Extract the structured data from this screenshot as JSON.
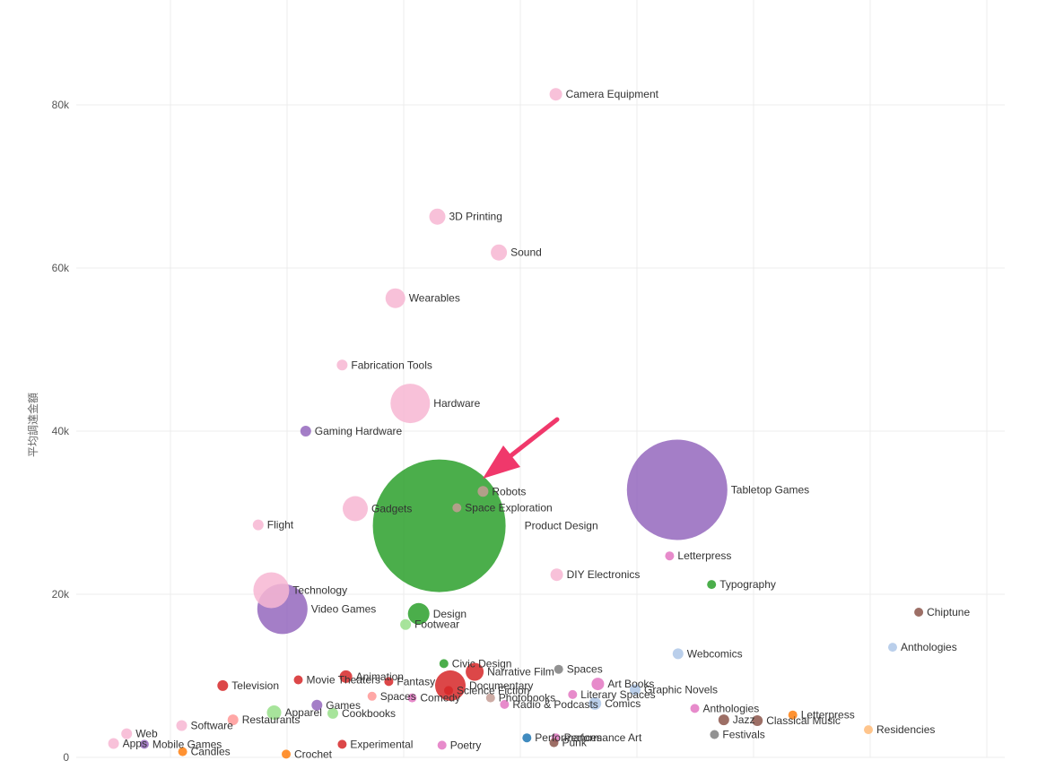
{
  "chart_data": {
    "type": "scatter",
    "ylabel": "平均調達金額",
    "ylim": [
      0,
      90000
    ],
    "y_ticks": [
      {
        "value": 0,
        "label": "0"
      },
      {
        "value": 20000,
        "label": "20k"
      },
      {
        "value": 40000,
        "label": "40k"
      },
      {
        "value": 60000,
        "label": "60k"
      },
      {
        "value": 80000,
        "label": "80k"
      }
    ],
    "x_ticks_labeled": false,
    "grid": true,
    "colors": {
      "pink": "#f7b6d2",
      "purple": "#9467bd",
      "green": "#2ca02c",
      "light_green": "#98df8a",
      "red": "#d62728",
      "grey": "#7f7f7f",
      "brown": "#8c564b",
      "blue": "#1f77b4",
      "light_blue": "#aec7e8",
      "orange": "#ff7f0e",
      "light_orange": "#ffbb78",
      "magenta": "#e377c2",
      "salmon": "#ff9896",
      "tan": "#c49c94",
      "annotation_arrow": "#f0386b"
    },
    "points": [
      {
        "label": "Camera Equipment",
        "x": 0.514,
        "y": 81300,
        "r": 7,
        "color": "pink"
      },
      {
        "label": "3D Printing",
        "x": 0.387,
        "y": 66300,
        "r": 9,
        "color": "pink"
      },
      {
        "label": "Sound",
        "x": 0.453,
        "y": 61900,
        "r": 9,
        "color": "pink"
      },
      {
        "label": "Wearables",
        "x": 0.342,
        "y": 56300,
        "r": 11,
        "color": "pink"
      },
      {
        "label": "Fabrication Tools",
        "x": 0.285,
        "y": 48100,
        "r": 6,
        "color": "pink"
      },
      {
        "label": "Hardware",
        "x": 0.358,
        "y": 43400,
        "r": 22,
        "color": "pink"
      },
      {
        "label": "Gaming Hardware",
        "x": 0.246,
        "y": 40000,
        "r": 6,
        "color": "purple"
      },
      {
        "label": "Robots",
        "x": 0.436,
        "y": 32600,
        "r": 6,
        "color": "tan"
      },
      {
        "label": "Space Exploration",
        "x": 0.408,
        "y": 30600,
        "r": 5,
        "color": "tan"
      },
      {
        "label": "Product Design",
        "x": 0.389,
        "y": 28400,
        "r": 74,
        "color": "green",
        "label_dx": 22,
        "label_dy": 0
      },
      {
        "label": "Tabletop Games",
        "x": 0.644,
        "y": 32800,
        "r": 56,
        "color": "purple"
      },
      {
        "label": "Gadgets",
        "x": 0.299,
        "y": 30500,
        "r": 14,
        "color": "pink"
      },
      {
        "label": "Flight",
        "x": 0.195,
        "y": 28500,
        "r": 6,
        "color": "pink"
      },
      {
        "label": "Letterpress",
        "x": 0.636,
        "y": 24700,
        "r": 5,
        "color": "magenta"
      },
      {
        "label": "DIY Electronics",
        "x": 0.515,
        "y": 22400,
        "r": 7,
        "color": "pink"
      },
      {
        "label": "Typography",
        "x": 0.681,
        "y": 21200,
        "r": 5,
        "color": "green"
      },
      {
        "label": "Technology",
        "x": 0.209,
        "y": 20500,
        "r": 20,
        "color": "pink"
      },
      {
        "label": "Video Games",
        "x": 0.221,
        "y": 18200,
        "r": 28,
        "color": "purple"
      },
      {
        "label": "Chiptune",
        "x": 0.903,
        "y": 17800,
        "r": 5,
        "color": "brown"
      },
      {
        "label": "Design",
        "x": 0.367,
        "y": 17600,
        "r": 12,
        "color": "green"
      },
      {
        "label": "Footwear",
        "x": 0.353,
        "y": 16300,
        "r": 6,
        "color": "light_green"
      },
      {
        "label": "Anthologies",
        "x": 0.875,
        "y": 13500,
        "r": 5,
        "color": "light_blue"
      },
      {
        "label": "Webcomics",
        "x": 0.645,
        "y": 12700,
        "r": 6,
        "color": "light_blue"
      },
      {
        "label": "Civic Design",
        "x": 0.394,
        "y": 11500,
        "r": 5,
        "color": "green"
      },
      {
        "label": "Spaces",
        "x": 0.517,
        "y": 10800,
        "r": 5,
        "color": "grey"
      },
      {
        "label": "Narrative Film",
        "x": 0.427,
        "y": 10500,
        "r": 10,
        "color": "red"
      },
      {
        "label": "Animation",
        "x": 0.289,
        "y": 9900,
        "r": 7,
        "color": "red"
      },
      {
        "label": "Movie Theaters",
        "x": 0.238,
        "y": 9500,
        "r": 5,
        "color": "red"
      },
      {
        "label": "Fantasy",
        "x": 0.335,
        "y": 9300,
        "r": 5,
        "color": "red"
      },
      {
        "label": "Art Books",
        "x": 0.559,
        "y": 9000,
        "r": 7,
        "color": "magenta"
      },
      {
        "label": "Documentary",
        "x": 0.401,
        "y": 8800,
        "r": 17,
        "color": "red"
      },
      {
        "label": "Television",
        "x": 0.157,
        "y": 8800,
        "r": 6,
        "color": "red"
      },
      {
        "label": "Science Fiction",
        "x": 0.399,
        "y": 8200,
        "r": 5,
        "color": "red"
      },
      {
        "label": "Graphic Novels",
        "x": 0.599,
        "y": 8300,
        "r": 6,
        "color": "light_blue"
      },
      {
        "label": "Literary Spaces",
        "x": 0.532,
        "y": 7700,
        "r": 5,
        "color": "magenta"
      },
      {
        "label": "Spaces",
        "x": 0.317,
        "y": 7500,
        "r": 5,
        "color": "salmon"
      },
      {
        "label": "Comedy",
        "x": 0.36,
        "y": 7300,
        "r": 5,
        "color": "magenta"
      },
      {
        "label": "Photobooks",
        "x": 0.444,
        "y": 7300,
        "r": 5,
        "color": "tan"
      },
      {
        "label": "Comics",
        "x": 0.556,
        "y": 6600,
        "r": 7,
        "color": "light_blue"
      },
      {
        "label": "Radio & Podcasts",
        "x": 0.459,
        "y": 6500,
        "r": 5,
        "color": "magenta"
      },
      {
        "label": "Games",
        "x": 0.258,
        "y": 6400,
        "r": 6,
        "color": "purple"
      },
      {
        "label": "Anthologies",
        "x": 0.663,
        "y": 6000,
        "r": 5,
        "color": "magenta"
      },
      {
        "label": "Letterpress",
        "x": 0.768,
        "y": 5200,
        "r": 5,
        "color": "orange"
      },
      {
        "label": "Apparel",
        "x": 0.212,
        "y": 5500,
        "r": 8,
        "color": "light_green"
      },
      {
        "label": "Cookbooks",
        "x": 0.275,
        "y": 5400,
        "r": 6,
        "color": "light_green"
      },
      {
        "label": "Restaurants",
        "x": 0.168,
        "y": 4600,
        "r": 6,
        "color": "salmon"
      },
      {
        "label": "Jazz",
        "x": 0.694,
        "y": 4600,
        "r": 6,
        "color": "brown"
      },
      {
        "label": "Classical Music",
        "x": 0.73,
        "y": 4500,
        "r": 6,
        "color": "brown"
      },
      {
        "label": "Software",
        "x": 0.113,
        "y": 3900,
        "r": 6,
        "color": "pink"
      },
      {
        "label": "Residencies",
        "x": 0.849,
        "y": 3400,
        "r": 5,
        "color": "light_orange"
      },
      {
        "label": "Festivals",
        "x": 0.684,
        "y": 2800,
        "r": 5,
        "color": "grey"
      },
      {
        "label": "Web",
        "x": 0.054,
        "y": 2900,
        "r": 6,
        "color": "pink"
      },
      {
        "label": "Performance Art",
        "x": 0.514,
        "y": 2400,
        "r": 5,
        "color": "magenta"
      },
      {
        "label": "Performances",
        "x": 0.483,
        "y": 2400,
        "r": 5,
        "color": "blue"
      },
      {
        "label": "Punk",
        "x": 0.512,
        "y": 1800,
        "r": 5,
        "color": "brown"
      },
      {
        "label": "Apps",
        "x": 0.04,
        "y": 1700,
        "r": 6,
        "color": "pink"
      },
      {
        "label": "Mobile Games",
        "x": 0.073,
        "y": 1600,
        "r": 5,
        "color": "purple"
      },
      {
        "label": "Poetry",
        "x": 0.392,
        "y": 1500,
        "r": 5,
        "color": "magenta"
      },
      {
        "label": "Experimental",
        "x": 0.285,
        "y": 1600,
        "r": 5,
        "color": "red"
      },
      {
        "label": "Candles",
        "x": 0.114,
        "y": 700,
        "r": 5,
        "color": "orange"
      },
      {
        "label": "Crochet",
        "x": 0.225,
        "y": 400,
        "r": 5,
        "color": "orange"
      }
    ]
  }
}
